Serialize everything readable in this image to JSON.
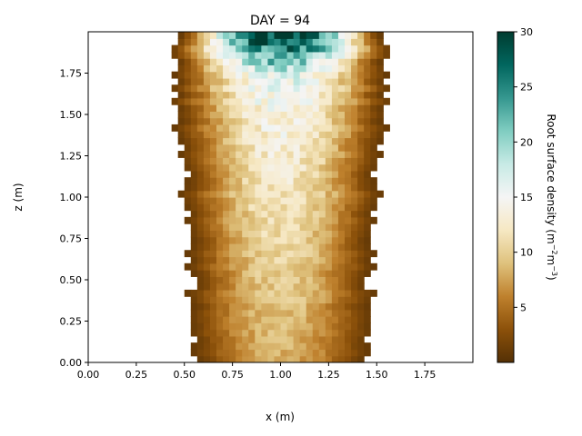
{
  "chart_data": {
    "type": "heatmap",
    "title": "DAY = 94",
    "xlabel": "x (m)",
    "ylabel": "z (m)",
    "xlim": [
      0,
      2.0
    ],
    "ylim": [
      0,
      2.0
    ],
    "xticks": [
      0.0,
      0.25,
      0.5,
      0.75,
      1.0,
      1.25,
      1.5,
      1.75
    ],
    "xtick_labels": [
      "0.00",
      "0.25",
      "0.50",
      "0.75",
      "1.00",
      "1.25",
      "1.50",
      "1.75"
    ],
    "yticks": [
      0.0,
      0.25,
      0.5,
      0.75,
      1.0,
      1.25,
      1.5,
      1.75
    ],
    "ytick_labels": [
      "0.00",
      "0.25",
      "0.50",
      "0.75",
      "1.00",
      "1.25",
      "1.50",
      "1.75"
    ],
    "colorbar": {
      "label_main": "Root surface density (m",
      "label_sup1": "−2",
      "label_mid": "m",
      "label_sup2": "−3",
      "label_end": ")",
      "range": [
        0,
        30
      ],
      "ticks": [
        5,
        10,
        15,
        20,
        25,
        30
      ],
      "tick_labels": [
        "5",
        "10",
        "15",
        "20",
        "25",
        "30"
      ],
      "colormap": "BrBG",
      "colors": [
        "#543005",
        "#8c510a",
        "#bf812d",
        "#dfc27d",
        "#f6e8c3",
        "#f5f5f5",
        "#c7eae5",
        "#80cdc1",
        "#35978f",
        "#01665e",
        "#003c30"
      ]
    },
    "density_profile": {
      "z": [
        0.0,
        0.25,
        0.5,
        0.75,
        1.0,
        1.25,
        1.5,
        1.75,
        1.97
      ],
      "half_width": [
        0.46,
        0.45,
        0.47,
        0.48,
        0.5,
        0.5,
        0.55,
        0.56,
        0.55
      ],
      "center": 1.0,
      "peak_center": [
        8,
        9,
        10,
        11,
        12,
        13,
        14,
        17,
        30
      ],
      "edge_value": 1
    }
  }
}
